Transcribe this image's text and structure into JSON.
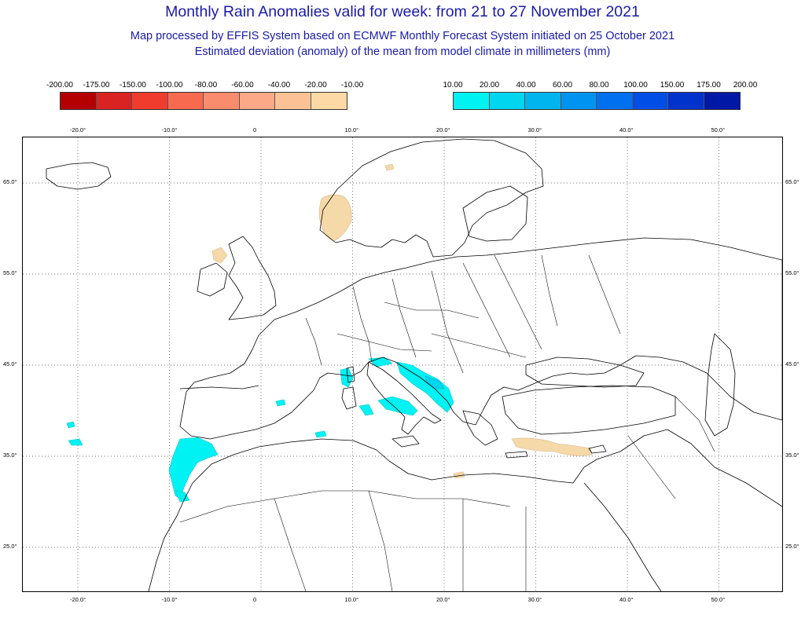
{
  "title": "Monthly Rain Anomalies valid for week: from 21 to 27 November 2021",
  "subtitle1": "Map processed by EFFIS System based on ECMWF Monthly Forecast System initiated on 25 October 2021",
  "subtitle2": "Estimated deviation (anomaly) of the mean from model climate in millimeters (mm)",
  "legend_dry": {
    "labels": [
      "-200.00",
      "-175.00",
      "-150.00",
      "-100.00",
      "-80.00",
      "-60.00",
      "-40.00",
      "-20.00",
      "-10.00"
    ],
    "colors": [
      "#b40000",
      "#d92323",
      "#f03c2d",
      "#f86a50",
      "#fa8c6e",
      "#fba987",
      "#fcc296",
      "#fdd9a6"
    ]
  },
  "legend_wet": {
    "labels": [
      "10.00",
      "20.00",
      "40.00",
      "60.00",
      "80.00",
      "100.00",
      "150.00",
      "175.00",
      "200.00"
    ],
    "colors": [
      "#00f2f2",
      "#00d6f0",
      "#00b4ee",
      "#0094f0",
      "#0070ee",
      "#004ee6",
      "#0032cc",
      "#0018a6"
    ]
  },
  "map": {
    "lon_labels": [
      "-20.0°",
      "-10.0°",
      "0",
      "10.0°",
      "20.0°",
      "30.0°",
      "40.0°",
      "50.0°"
    ],
    "lat_labels": [
      "65.0°",
      "55.0°",
      "45.0°",
      "35.0°",
      "25.0°"
    ],
    "lon_values": [
      -20,
      -10,
      0,
      10,
      20,
      30,
      40,
      50
    ],
    "lat_values": [
      65,
      55,
      45,
      35,
      25
    ],
    "grid": "dotted",
    "anomaly_areas": [
      {
        "name": "southern Norway",
        "category": "-10.00 to -20.00",
        "color": "#f5d9a8"
      },
      {
        "name": "central Norway coast",
        "category": "-10.00 to -20.00",
        "color": "#f5d9a8"
      },
      {
        "name": "western Scotland",
        "category": "-10.00 to -20.00",
        "color": "#f5d9a8"
      },
      {
        "name": "Crete to Cyprus",
        "category": "-10.00 to -20.00",
        "color": "#f5d9a8"
      },
      {
        "name": "northeast Libya",
        "category": "-10.00 to -20.00",
        "color": "#f5d9a8"
      },
      {
        "name": "Morocco",
        "category": "10.00 to 20.00",
        "color": "#00f2f2"
      },
      {
        "name": "Italy and Tyrrhenian Sea",
        "category": "10.00 to 20.00",
        "color": "#00f2f2"
      },
      {
        "name": "Adriatic and western Balkans",
        "category": "20.00 to 40.00",
        "color": "#00d6f0"
      },
      {
        "name": "Sardinia and Corsica",
        "category": "10.00 to 20.00",
        "color": "#00f2f2"
      },
      {
        "name": "Balearic Islands",
        "category": "10.00 to 20.00",
        "color": "#00f2f2"
      },
      {
        "name": "Azores and Madeira",
        "category": "10.00 to 20.00",
        "color": "#00f2f2"
      }
    ]
  }
}
